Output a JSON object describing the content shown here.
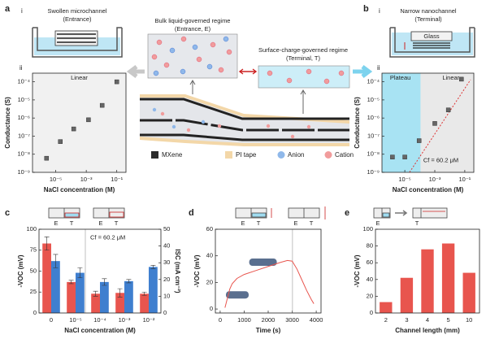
{
  "figure": {
    "panel_letters": [
      "a",
      "b",
      "c",
      "d",
      "e"
    ],
    "sub_labels": [
      "i",
      "ii",
      "i",
      "ii"
    ],
    "a_i": {
      "title": "Swollen microchannel",
      "subtitle": "(Entrance)"
    },
    "bulk": {
      "title": "Bulk liquid-governed regime",
      "subtitle": "(Entrance, E)"
    },
    "surface": {
      "title": "Surface-charge-governed regime",
      "subtitle": "(Terminal, T)"
    },
    "b_i": {
      "title": "Narrow nanochannel",
      "subtitle": "(Terminal)",
      "glass": "Glass"
    },
    "legend": [
      "MXene",
      "PI tape",
      "Anion",
      "Cation"
    ],
    "et": [
      "E",
      "T",
      "E",
      "T",
      "E",
      "T",
      "E",
      "T",
      "E",
      "T"
    ]
  },
  "chart_data": [
    {
      "type": "scatter",
      "xlog": true,
      "ylog": true,
      "color": "#666666",
      "x": [
        2.5e-06,
        2e-05,
        0.00015,
        0.0014,
        0.011,
        0.1
      ],
      "values": [
        6e-09,
        5e-08,
        2.5e-07,
        8e-07,
        5e-06,
        0.0001
      ],
      "xlim": [
        3e-07,
        0.4
      ],
      "ylim": [
        1e-09,
        0.0003
      ],
      "xticks": [
        {
          "value": 1e-05,
          "label": "10⁻⁵"
        },
        {
          "value": 0.001,
          "label": "10⁻³"
        },
        {
          "value": 0.1,
          "label": "10⁻¹"
        }
      ],
      "yticks": [
        {
          "value": 1e-09,
          "label": "10⁻⁹"
        },
        {
          "value": 1e-08,
          "label": "10⁻⁸"
        },
        {
          "value": 1e-07,
          "label": "10⁻⁷"
        },
        {
          "value": 1e-06,
          "label": "10⁻⁶"
        },
        {
          "value": 1e-05,
          "label": "10⁻⁵"
        },
        {
          "value": 0.0001,
          "label": "10⁻⁴"
        }
      ],
      "xlabel": "NaCl concentration (M)",
      "ylabel": "Conductance (S)",
      "annotations": [
        "Linear"
      ]
    },
    {
      "type": "scatter",
      "xlog": true,
      "ylog": true,
      "color": "#666666",
      "x": [
        1.5e-06,
        1e-05,
        9e-05,
        0.001,
        0.008,
        0.06
      ],
      "values": [
        7e-09,
        7e-09,
        5.6e-08,
        5e-07,
        2.8e-06,
        0.00014
      ],
      "xlim": [
        3e-07,
        0.4
      ],
      "ylim": [
        1e-09,
        0.0003
      ],
      "xticks": [
        {
          "value": 1e-05,
          "label": "10⁻⁵"
        },
        {
          "value": 0.001,
          "label": "10⁻³"
        },
        {
          "value": 0.1,
          "label": "10⁻¹"
        }
      ],
      "yticks": [
        {
          "value": 1e-09,
          "label": "10⁻⁹"
        },
        {
          "value": 1e-08,
          "label": "10⁻⁸"
        },
        {
          "value": 1e-07,
          "label": "10⁻⁷"
        },
        {
          "value": 1e-06,
          "label": "10⁻⁶"
        },
        {
          "value": 1e-05,
          "label": "10⁻⁵"
        },
        {
          "value": 0.0001,
          "label": "10⁻⁴"
        }
      ],
      "xlabel": "NaCl concentration (M)",
      "ylabel": "Conductance (S)",
      "annotations": [
        "Plateau",
        "Linear",
        "Cf = 60.2 μM"
      ]
    },
    {
      "type": "bar",
      "categories": [
        "0",
        "10⁻⁵",
        "10⁻⁴",
        "10⁻³",
        "10⁻²"
      ],
      "series": [
        {
          "color": "#e8554e",
          "values": [
            83,
            37,
            23,
            24,
            23
          ],
          "errors": [
            8,
            2,
            3,
            5,
            2
          ]
        },
        {
          "color": "#3f7fcf",
          "axis": "y2",
          "values": [
            31,
            24,
            18.5,
            19,
            27.5
          ],
          "errors": [
            4,
            3,
            2,
            1,
            1
          ]
        }
      ],
      "ylim": [
        0,
        100
      ],
      "yticks": [
        0,
        25,
        50,
        75,
        100
      ],
      "y2lim": [
        0,
        50
      ],
      "y2ticks": [
        0,
        10,
        20,
        30,
        40,
        50
      ],
      "xlabel": "NaCl concentration (M)",
      "ylabel": "-VOC (mV)",
      "y2label": "ISC (mA cm⁻²)",
      "annotations": [
        "Cf = 60.2 μM"
      ]
    },
    {
      "type": "line",
      "color": "#e8554e",
      "x": [
        200,
        300,
        400,
        500,
        700,
        1000,
        1500,
        2000,
        2500,
        2800,
        3000,
        3200,
        3400,
        3600,
        3800,
        3900
      ],
      "values": [
        1,
        8,
        15,
        19,
        23,
        26,
        29,
        32,
        35,
        36.5,
        36,
        30,
        22,
        14,
        7,
        4
      ],
      "xlim": [
        -200,
        4200
      ],
      "ylim": [
        -3,
        60
      ],
      "xticks": [
        0,
        1000,
        2000,
        3000,
        4000
      ],
      "yticks": [
        0,
        20,
        40,
        60
      ],
      "xlabel": "Time (s)",
      "ylabel": "-VOC (mV)"
    },
    {
      "type": "bar",
      "color": "#e8554e",
      "categories": [
        "2",
        "3",
        "4",
        "5",
        "10"
      ],
      "values": [
        13,
        42,
        76,
        83,
        48
      ],
      "ylim": [
        0,
        100
      ],
      "yticks": [
        0,
        20,
        40,
        60,
        80,
        100
      ],
      "xlabel": "Channel length (mm)",
      "ylabel": "-VOC (mV)"
    }
  ]
}
